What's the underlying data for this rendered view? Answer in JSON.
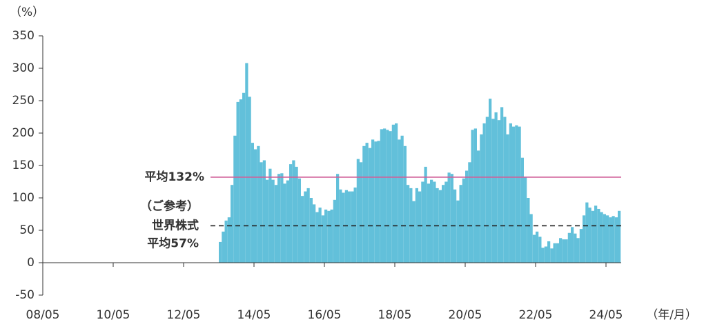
{
  "chart_data": {
    "type": "bar",
    "y_unit": "（%）",
    "x_unit": "（年/月）",
    "color": "#62c0da",
    "categories": [
      "08/05",
      null,
      null,
      null,
      null,
      null,
      null,
      null,
      null,
      null,
      null,
      null,
      null,
      null,
      null,
      null,
      null,
      null,
      null,
      null,
      null,
      null,
      null,
      null,
      "10/05",
      null,
      null,
      null,
      null,
      null,
      null,
      null,
      null,
      null,
      null,
      null,
      null,
      null,
      null,
      null,
      null,
      null,
      null,
      null,
      null,
      null,
      null,
      null,
      "12/05",
      null,
      null,
      null,
      null,
      null,
      null,
      null,
      null,
      null,
      null,
      null,
      null,
      null,
      null,
      null,
      null,
      null,
      null,
      null,
      null,
      null,
      null,
      null,
      "14/05",
      null,
      null,
      null,
      null,
      null,
      null,
      null,
      null,
      null,
      null,
      null,
      null,
      null,
      null,
      null,
      null,
      null,
      null,
      null,
      null,
      null,
      null,
      null,
      "16/05",
      null,
      null,
      null,
      null,
      null,
      null,
      null,
      null,
      null,
      null,
      null,
      null,
      null,
      null,
      null,
      null,
      null,
      null,
      null,
      null,
      null,
      null,
      null,
      "18/05",
      null,
      null,
      null,
      null,
      null,
      null,
      null,
      null,
      null,
      null,
      null,
      null,
      null,
      null,
      null,
      null,
      null,
      null,
      null,
      null,
      null,
      null,
      null,
      "20/05",
      null,
      null,
      null,
      null,
      null,
      null,
      null,
      null,
      null,
      null,
      null,
      null,
      null,
      null,
      null,
      null,
      null,
      null,
      null,
      null,
      null,
      null,
      null,
      "22/05",
      null,
      null,
      null,
      null,
      null,
      null,
      null,
      null,
      null,
      null,
      null,
      null,
      null,
      null,
      null,
      null,
      null,
      null,
      null,
      null,
      null,
      null,
      null,
      "24/05",
      null,
      null,
      null,
      null
    ],
    "values": [
      null,
      null,
      null,
      null,
      null,
      null,
      null,
      null,
      null,
      null,
      null,
      null,
      null,
      null,
      null,
      null,
      null,
      null,
      null,
      null,
      null,
      null,
      null,
      null,
      null,
      null,
      null,
      null,
      null,
      null,
      null,
      null,
      null,
      null,
      null,
      null,
      null,
      null,
      null,
      null,
      null,
      null,
      null,
      null,
      null,
      null,
      null,
      null,
      null,
      null,
      null,
      null,
      null,
      null,
      null,
      null,
      null,
      null,
      null,
      null,
      32,
      48,
      65,
      70,
      120,
      196,
      248,
      252,
      262,
      308,
      256,
      185,
      175,
      180,
      155,
      158,
      128,
      145,
      128,
      120,
      137,
      138,
      122,
      127,
      152,
      158,
      148,
      130,
      103,
      110,
      115,
      100,
      90,
      78,
      85,
      73,
      82,
      80,
      82,
      97,
      137,
      113,
      108,
      112,
      110,
      110,
      116,
      160,
      155,
      180,
      185,
      177,
      190,
      187,
      188,
      206,
      207,
      205,
      203,
      213,
      215,
      190,
      196,
      180,
      120,
      115,
      95,
      115,
      110,
      125,
      148,
      122,
      128,
      125,
      115,
      112,
      120,
      125,
      139,
      137,
      113,
      96,
      120,
      130,
      142,
      155,
      205,
      207,
      173,
      198,
      215,
      225,
      253,
      222,
      232,
      220,
      240,
      225,
      198,
      215,
      210,
      212,
      210,
      162,
      132,
      100,
      75,
      43,
      48,
      40,
      23,
      25,
      33,
      22,
      30,
      30,
      38,
      36,
      36,
      46,
      55,
      45,
      38,
      52,
      73,
      93,
      85,
      80,
      88,
      83,
      78,
      75,
      73,
      70,
      72,
      70,
      80
    ],
    "ylim": [
      -50,
      350
    ],
    "yticks": [
      -50,
      0,
      50,
      100,
      150,
      200,
      250,
      300,
      350
    ],
    "reference_lines": [
      {
        "value": 132,
        "label": "平均132%",
        "color": "#d0609a",
        "dashed": false
      },
      {
        "value": 57,
        "note": "（ご参考）",
        "label_lines": [
          "世界株式",
          "平均57%"
        ],
        "color": "#222222",
        "dashed": true
      }
    ]
  }
}
